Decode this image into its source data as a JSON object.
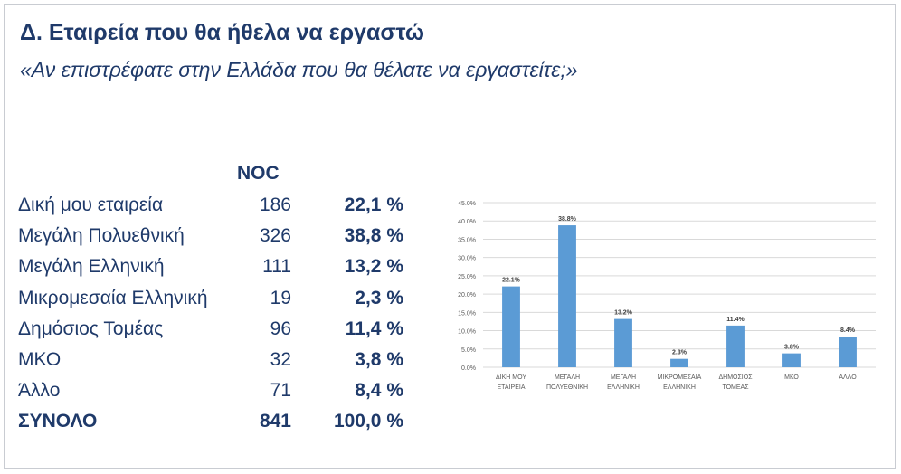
{
  "title": "Δ. Εταιρεία που θα ήθελα να εργαστώ",
  "subtitle": "«Αν επιστρέφατε στην Ελλάδα που θα θέλατε να εργαστείτε;»",
  "table": {
    "count_header": "NOC",
    "rows": [
      {
        "label": "Δική μου εταιρεία",
        "count": "186",
        "percent": "22,1 %"
      },
      {
        "label": "Μεγάλη Πολυεθνική",
        "count": "326",
        "percent": "38,8 %"
      },
      {
        "label": "Μεγάλη Ελληνική",
        "count": "111",
        "percent": "13,2 %"
      },
      {
        "label": "Μικρομεσαία Ελληνική",
        "count": "19",
        "percent": "2,3 %"
      },
      {
        "label": "Δημόσιος Τομέας",
        "count": "96",
        "percent": "11,4 %"
      },
      {
        "label": "ΜΚΟ",
        "count": "32",
        "percent": "3,8 %"
      },
      {
        "label": "Άλλο",
        "count": "71",
        "percent": "8,4 %"
      }
    ],
    "total": {
      "label": "ΣΥΝΟΛΟ",
      "count": "841",
      "percent": "100,0 %"
    }
  },
  "chart_data": {
    "type": "bar",
    "categories": [
      [
        "ΔΙΚΗ ΜΟΥ",
        "ΕΤΑΙΡΕΙΑ"
      ],
      [
        "ΜΕΓΑΛΗ",
        "ΠΟΛΥΕΘΝΙΚΗ"
      ],
      [
        "ΜΕΓΑΛΗ",
        "ΕΛΛΗΝΙΚΗ"
      ],
      [
        "ΜΙΚΡΟΜΕΣΑΙΑ",
        "ΕΛΛΗΝΙΚΗ"
      ],
      [
        "ΔΗΜΟΣΙΟΣ",
        "ΤΟΜΕΑΣ"
      ],
      [
        "ΜΚΟ"
      ],
      [
        "ΑΛΛΟ"
      ]
    ],
    "values": [
      22.1,
      38.8,
      13.2,
      2.3,
      11.4,
      3.8,
      8.4
    ],
    "data_labels": [
      "22.1%",
      "38.8%",
      "13.2%",
      "2.3%",
      "11.4%",
      "3.8%",
      "8.4%"
    ],
    "yticks": [
      "0.0%",
      "5.0%",
      "10.0%",
      "15.0%",
      "20.0%",
      "25.0%",
      "30.0%",
      "35.0%",
      "40.0%",
      "45.0%"
    ],
    "ylim": [
      0,
      45
    ],
    "grid": true,
    "bar_color": "#5b9bd5"
  }
}
